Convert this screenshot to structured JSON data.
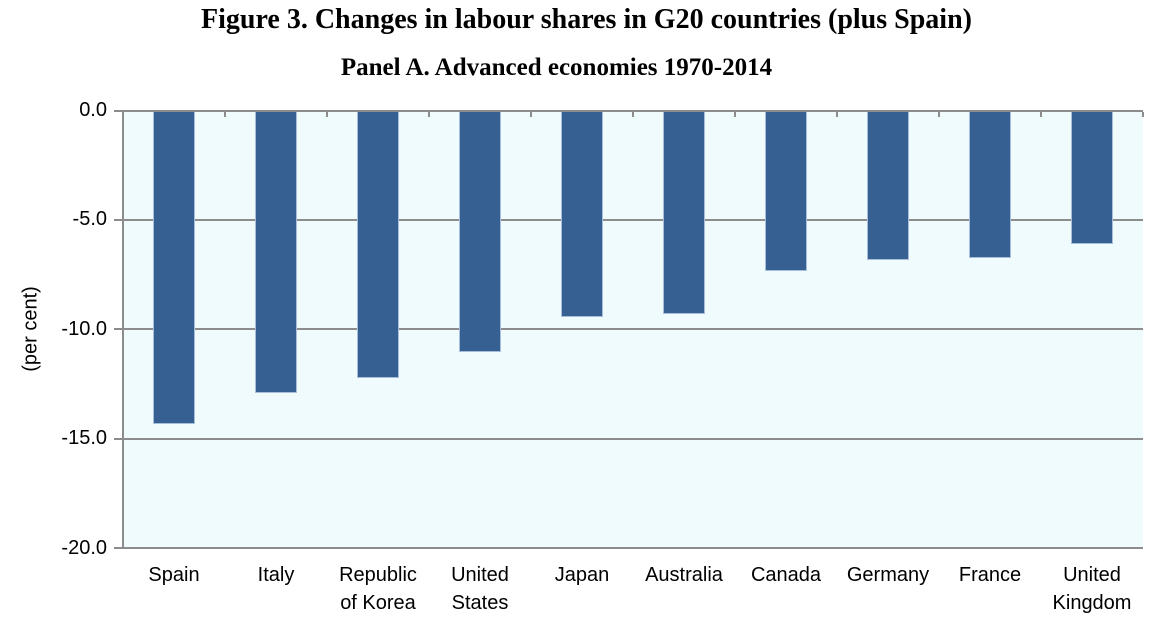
{
  "figure": {
    "title": "Figure 3. Changes in labour shares in G20 countries (plus Spain)",
    "subtitle": "Panel A. Advanced economies 1970-2014"
  },
  "chart_data": {
    "type": "bar",
    "title": "Figure 3. Changes in labour shares in G20 countries (plus Spain)",
    "subtitle": "Panel A. Advanced economies 1970-2014",
    "xlabel": "",
    "ylabel": "(per cent)",
    "categories": [
      "Spain",
      "Italy",
      "Republic of Korea",
      "United States",
      "Japan",
      "Australia",
      "Canada",
      "Germany",
      "France",
      "United Kingdom"
    ],
    "values": [
      -14.3,
      -12.9,
      -12.2,
      -11.0,
      -9.4,
      -9.3,
      -7.3,
      -6.8,
      -6.7,
      -6.1
    ],
    "ylim": [
      -20,
      0
    ],
    "y_ticks": [
      0,
      -5,
      -10,
      -15,
      -20
    ],
    "y_tick_labels": [
      "0.0",
      "-5.0",
      "-10.0",
      "-15.0",
      "-20.0"
    ],
    "grid": true,
    "legend": "none",
    "colors": {
      "bar_fill": "#366092",
      "bar_border": "#a8bfdc",
      "plot_background": "#f0fbfd",
      "axis_and_grid": "#8c8c8c",
      "text": "#000000"
    }
  }
}
